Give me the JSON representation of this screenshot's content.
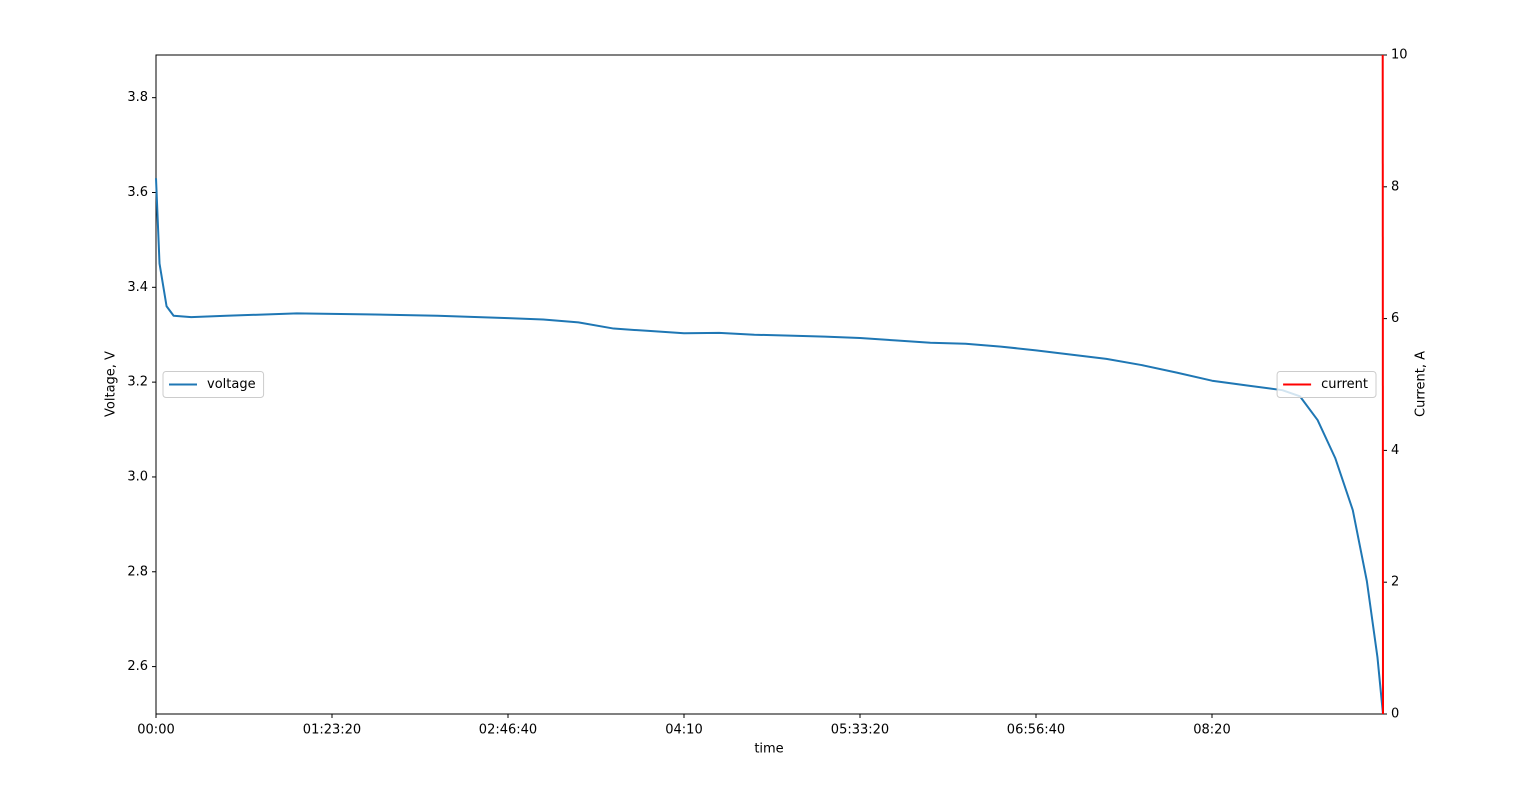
{
  "chart_data": {
    "type": "line",
    "xlabel": "time",
    "ylabel": "Voltage, V",
    "y2label": "Current, A",
    "xlim": [
      0,
      34858
    ],
    "ylim": [
      2.5,
      3.89
    ],
    "y2lim": [
      0,
      10
    ],
    "xticks": [
      {
        "value": 0,
        "label": "00:00"
      },
      {
        "value": 5000,
        "label": "01:23:20"
      },
      {
        "value": 10000,
        "label": "02:46:40"
      },
      {
        "value": 15000,
        "label": "04:10"
      },
      {
        "value": 20000,
        "label": "05:33:20"
      },
      {
        "value": 25000,
        "label": "06:56:40"
      },
      {
        "value": 30000,
        "label": "08:20"
      }
    ],
    "yticks": [
      2.6,
      2.8,
      {
        "value": 3,
        "label": "3.0"
      },
      3.2,
      3.4,
      3.6,
      3.8
    ],
    "y2ticks": [
      0,
      2,
      4,
      6,
      8,
      10
    ],
    "legend_loc": "center left",
    "legend2_loc": "center right",
    "series": [
      {
        "name": "voltage",
        "color": "#1f77b4",
        "x": [
          0,
          100,
          300,
          500,
          1000,
          2000,
          4000,
          6000,
          8000,
          10000,
          11000,
          12000,
          13000,
          14000,
          15000,
          16000,
          17000,
          18000,
          19000,
          20000,
          21000,
          22000,
          23000,
          24000,
          25000,
          26000,
          27000,
          28000,
          29000,
          30000,
          31000,
          32000,
          32500,
          33000,
          33500,
          34000,
          34400,
          34700,
          34858
        ],
        "values": [
          3.63,
          3.45,
          3.36,
          3.34,
          3.337,
          3.34,
          3.345,
          3.343,
          3.34,
          3.335,
          3.332,
          3.326,
          3.313,
          3.308,
          3.303,
          3.304,
          3.3,
          3.298,
          3.296,
          3.293,
          3.288,
          3.283,
          3.281,
          3.275,
          3.267,
          3.258,
          3.249,
          3.236,
          3.22,
          3.203,
          3.193,
          3.183,
          3.17,
          3.12,
          3.04,
          2.93,
          2.78,
          2.62,
          2.5
        ]
      },
      {
        "name": "current",
        "color": "#ff0000",
        "axis": "y2",
        "x": [
          34850,
          34858
        ],
        "values": [
          10,
          0
        ]
      }
    ]
  }
}
